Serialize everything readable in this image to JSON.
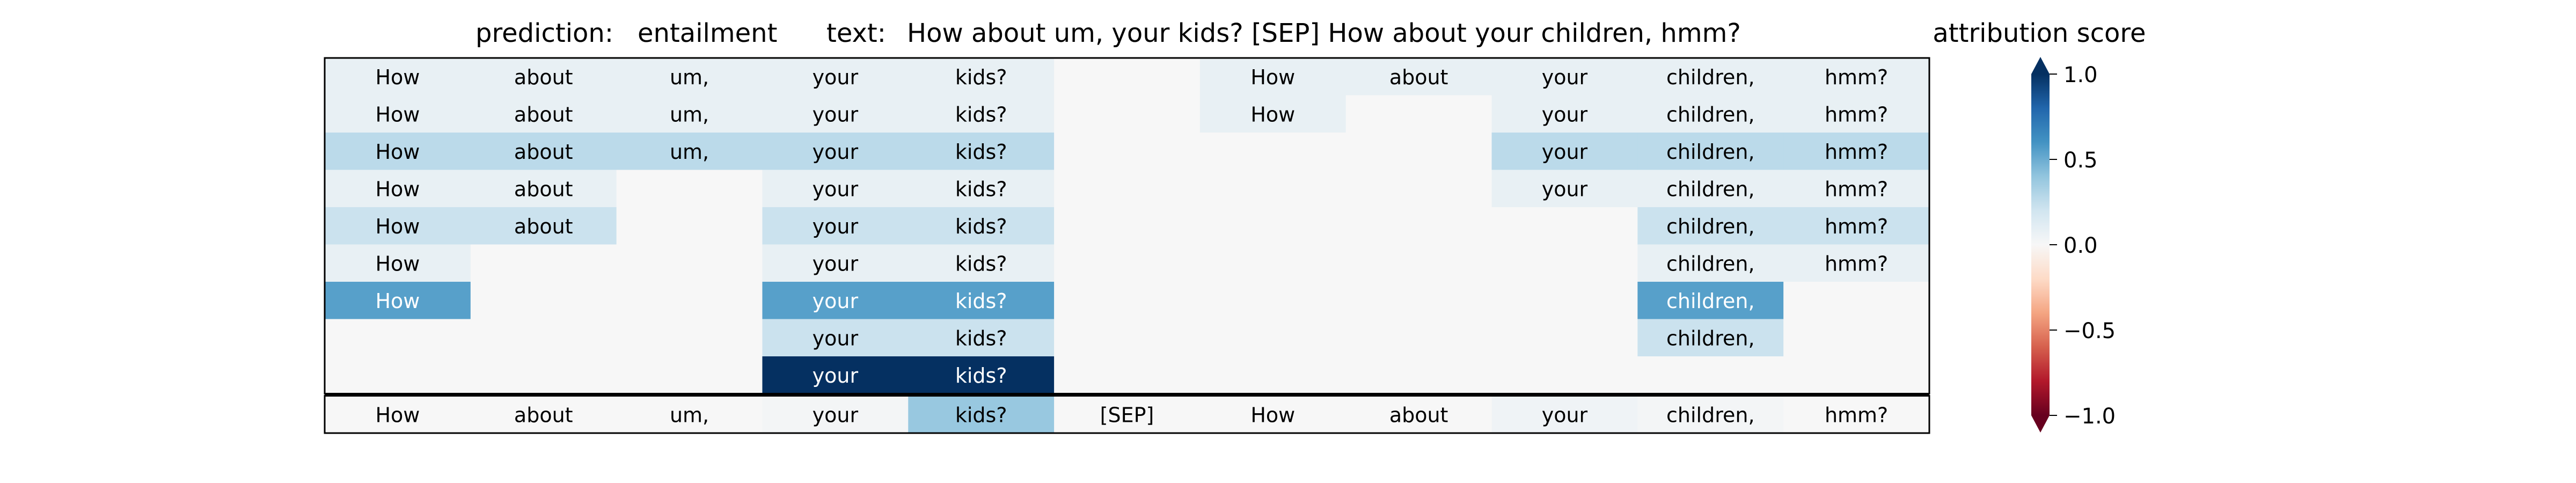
{
  "chart_data": {
    "type": "heatmap",
    "title": {
      "prediction_label": "prediction:",
      "prediction": "entailment",
      "text_label": "text:",
      "text": "How about um, your kids? [SEP] How about your children, hmm?"
    },
    "colorbar": {
      "label": "attribution score",
      "range": [
        -1.0,
        1.0
      ],
      "ticks": [
        "1.0",
        "0.5",
        "0.0",
        "−0.5",
        "−1.0"
      ],
      "tick_values": [
        1.0,
        0.5,
        0.0,
        -0.5,
        -1.0
      ],
      "colormap": "RdBu",
      "extend": "both"
    },
    "tokens": [
      "How",
      "about",
      "um,",
      "your",
      "kids?",
      "[SEP]",
      "How",
      "about",
      "your",
      "children,",
      "hmm?"
    ],
    "rows": [
      [
        0.08,
        0.08,
        0.08,
        0.08,
        0.08,
        null,
        0.08,
        0.08,
        0.08,
        0.08,
        0.08
      ],
      [
        0.08,
        0.08,
        0.08,
        0.08,
        0.08,
        null,
        0.08,
        null,
        0.08,
        0.08,
        0.08
      ],
      [
        0.27,
        0.27,
        0.27,
        0.27,
        0.27,
        null,
        null,
        null,
        0.27,
        0.27,
        0.27
      ],
      [
        0.08,
        0.08,
        null,
        0.08,
        0.08,
        null,
        null,
        null,
        0.08,
        0.08,
        0.08
      ],
      [
        0.22,
        0.22,
        null,
        0.22,
        0.22,
        null,
        null,
        null,
        null,
        0.22,
        0.22
      ],
      [
        0.08,
        null,
        null,
        0.08,
        0.08,
        null,
        null,
        null,
        null,
        0.08,
        0.08
      ],
      [
        0.55,
        null,
        null,
        0.55,
        0.55,
        null,
        null,
        null,
        null,
        0.55,
        null
      ],
      [
        null,
        null,
        null,
        0.22,
        0.22,
        null,
        null,
        null,
        null,
        0.22,
        null
      ],
      [
        null,
        null,
        null,
        1.0,
        1.0,
        null,
        null,
        null,
        null,
        null,
        null
      ]
    ],
    "summary_row": [
      0.0,
      0.0,
      0.0,
      0.02,
      0.38,
      0.0,
      0.0,
      0.0,
      0.04,
      0.02,
      0.0
    ]
  }
}
